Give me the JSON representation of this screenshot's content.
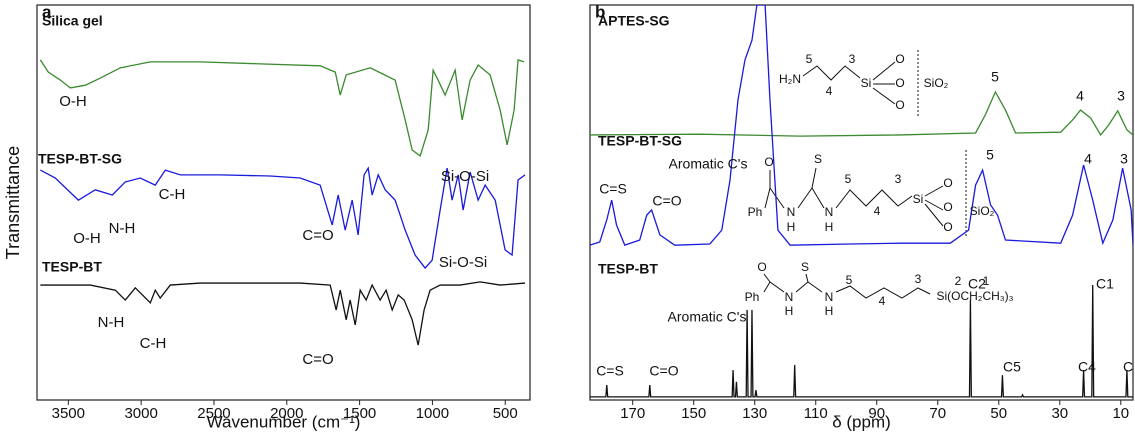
{
  "chart_data": [
    {
      "type": "line",
      "label": "a",
      "xlabel": "Wavenumber (cm⁻¹)",
      "ylabel": "Transmittance",
      "xlim": [
        3715,
        330
      ],
      "ylim": [
        0,
        100
      ],
      "xticks": [
        3500,
        3000,
        2500,
        2000,
        1500,
        1000,
        500
      ],
      "series": [
        {
          "name": "Silica gel",
          "color": "#3a8a2e",
          "x": [
            3692,
            3637,
            3555,
            3486,
            3383,
            3280,
            3143,
            2937,
            2594,
            2182,
            1770,
            1667,
            1633,
            1592,
            1427,
            1256,
            1187,
            1139,
            1084,
            1029,
            995,
            961,
            913,
            844,
            796,
            741,
            686,
            604,
            535,
            487,
            439,
            412,
            371
          ],
          "values": [
            86.1,
            83.0,
            81.0,
            79.0,
            79.7,
            81.5,
            84.1,
            85.6,
            85.6,
            85.1,
            84.6,
            83.0,
            77.2,
            82.3,
            84.1,
            81.0,
            70.9,
            63.3,
            61.8,
            68.4,
            83.5,
            81.0,
            77.2,
            83.5,
            70.9,
            81.0,
            84.8,
            82.3,
            73.4,
            64.6,
            73.4,
            86.1,
            85.6
          ]
        },
        {
          "name": "TESP-BT-SG",
          "color": "#1a1adc",
          "x": [
            3692,
            3589,
            3431,
            3315,
            3198,
            3109,
            3006,
            2903,
            2834,
            2731,
            2457,
            2114,
            1908,
            1771,
            1688,
            1647,
            1599,
            1551,
            1510,
            1469,
            1441,
            1414,
            1372,
            1324,
            1256,
            1187,
            1119,
            1050,
            1002,
            947,
            899,
            865,
            823,
            789,
            741,
            686,
            638,
            569,
            501,
            453,
            412,
            364
          ],
          "values": [
            58.2,
            56.2,
            50.6,
            53.2,
            51.9,
            55.2,
            56.2,
            54.4,
            58.2,
            57.0,
            57.0,
            56.7,
            56.2,
            54.4,
            44.3,
            51.9,
            43.0,
            50.6,
            41.8,
            57.0,
            58.7,
            51.9,
            57.0,
            53.2,
            50.6,
            43.0,
            36.7,
            33.4,
            35.4,
            48.1,
            58.7,
            50.6,
            57.0,
            48.1,
            57.7,
            50.6,
            54.4,
            50.6,
            38.0,
            36.7,
            55.7,
            57.0
          ]
        },
        {
          "name": "TESP-BT",
          "color": "#111111",
          "x": [
            3692,
            3349,
            3177,
            3109,
            3040,
            2937,
            2903,
            2869,
            2800,
            2594,
            1908,
            1702,
            1661,
            1633,
            1592,
            1565,
            1530,
            1496,
            1455,
            1414,
            1359,
            1318,
            1276,
            1235,
            1194,
            1139,
            1098,
            1057,
            1016,
            947,
            810,
            672,
            535,
            364
          ],
          "values": [
            29.1,
            29.1,
            27.8,
            25.3,
            28.4,
            24.6,
            27.8,
            25.8,
            29.1,
            29.6,
            29.6,
            29.1,
            22.8,
            27.8,
            20.3,
            25.3,
            19.0,
            27.8,
            25.3,
            29.1,
            25.3,
            27.8,
            22.8,
            26.6,
            25.3,
            20.3,
            13.9,
            22.8,
            27.8,
            29.1,
            29.1,
            29.9,
            29.1,
            29.6
          ]
        }
      ],
      "annotations": [
        "O-H",
        "Si-O-Si",
        "O-H",
        "N-H",
        "C-H",
        "C=O",
        "Si-O-Si",
        "N-H",
        "C-H",
        "C=O"
      ]
    },
    {
      "type": "line",
      "label": "b",
      "xlabel": "δ (ppm)",
      "xlim": [
        184,
        6
      ],
      "ylim": [
        0,
        100
      ],
      "xticks": [
        170,
        150,
        130,
        110,
        90,
        70,
        50,
        30,
        10
      ],
      "series": [
        {
          "name": "APTES-SG",
          "color": "#3a8a2e",
          "x": [
            184.1,
            148.0,
            115.1,
            82.3,
            57.6,
            54.4,
            51.1,
            47.8,
            44.5,
            29.7,
            25.8,
            23.2,
            19.9,
            16.6,
            14.0,
            11.0,
            8.0,
            6.0
          ],
          "values": [
            67.1,
            67.3,
            66.8,
            67.1,
            67.6,
            72.2,
            78.0,
            73.4,
            67.6,
            67.8,
            70.9,
            73.4,
            71.4,
            67.1,
            69.6,
            73.2,
            68.4,
            67.1
          ]
        },
        {
          "name": "TESP-BT-SG",
          "color": "#1a1adc",
          "x": [
            184.1,
            180.8,
            178.5,
            176.9,
            175.3,
            172.6,
            167.7,
            165.4,
            163.8,
            161.1,
            156.2,
            144.7,
            140.8,
            138.1,
            135.5,
            133.2,
            130.9,
            129.3,
            126.6,
            125.0,
            122.4,
            118.4,
            98.7,
            82.3,
            65.9,
            59.9,
            57.6,
            55.3,
            52.7,
            50.4,
            47.8,
            29.7,
            25.8,
            22.2,
            19.2,
            15.9,
            12.6,
            9.4,
            6.6,
            6.0
          ],
          "values": [
            39.2,
            40.0,
            45.6,
            50.6,
            44.3,
            39.2,
            40.5,
            46.8,
            48.1,
            41.8,
            39.2,
            39.5,
            43.0,
            55.7,
            75.9,
            86.1,
            91.1,
            100,
            100,
            75.9,
            43.0,
            39.2,
            39.5,
            39.7,
            39.7,
            43.0,
            54.4,
            58.2,
            49.4,
            46.8,
            40.5,
            39.7,
            46.8,
            59.5,
            50.6,
            39.7,
            45.6,
            58.7,
            48.1,
            39.2
          ]
        },
        {
          "name": "TESP-BT",
          "color": "#111111",
          "x": [
            184,
            178.8,
            178.5,
            178.2,
            164.7,
            164.4,
            164.1,
            137.4,
            137.1,
            136.8,
            136.3,
            136.0,
            135.7,
            132.8,
            132.5,
            132.2,
            131.2,
            130.9,
            130.6,
            129.9,
            129.6,
            129.3,
            117.2,
            116.9,
            116.6,
            59.6,
            59.3,
            59.0,
            49.1,
            48.8,
            48.5,
            42.5,
            42.2,
            41.9,
            22.5,
            22.2,
            21.9,
            19.5,
            19.2,
            18.9,
            8.3,
            8.0,
            7.7,
            6.0
          ],
          "values": [
            0.8,
            0.8,
            3.8,
            0.8,
            0.8,
            3.8,
            0.8,
            0.8,
            7.6,
            0.8,
            0.8,
            4.6,
            0.8,
            0.8,
            22.8,
            0.8,
            0.8,
            22.8,
            0.8,
            0.8,
            2.5,
            0.8,
            0.8,
            8.9,
            0.8,
            0.8,
            25.3,
            0.8,
            0.8,
            6.3,
            0.8,
            0.8,
            1.3,
            0.8,
            0.8,
            7.6,
            0.8,
            0.8,
            29.1,
            0.8,
            0.8,
            7.6,
            0.8,
            0.8
          ]
        }
      ],
      "annotations": [
        "5",
        "4",
        "3",
        "Aromatic C's",
        "C=S",
        "C=O",
        "5",
        "4",
        "3",
        "Aromatic C's",
        "C=S",
        "C=O",
        "C2",
        "C1",
        "C5",
        "C4",
        "C",
        "H₂N",
        "5",
        "4",
        "3",
        "Si",
        "O",
        "O",
        "O",
        "SiO₂",
        "O",
        "S",
        "Ph",
        "N",
        "H",
        "N",
        "H",
        "5",
        "4",
        "3",
        "Si",
        "O",
        "O",
        "O",
        "SiO₂",
        "O",
        "S",
        "Ph",
        "N",
        "H",
        "N",
        "H",
        "5",
        "4",
        "3",
        "2",
        "1",
        "Si(OCH₂CH₃)₃"
      ]
    }
  ]
}
